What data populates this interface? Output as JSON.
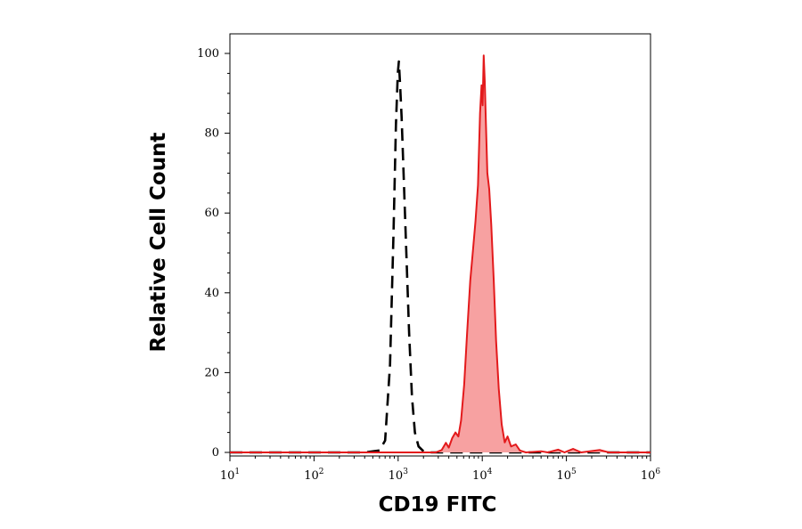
{
  "chart_data": {
    "type": "area",
    "xlabel": "CD19 FITC",
    "ylabel": "Relative Cell Count",
    "x_scale": "log",
    "xlim": [
      10,
      1000000
    ],
    "ylim": [
      0,
      100
    ],
    "x_ticks": [
      {
        "base": "10",
        "exp": "1",
        "value": 10
      },
      {
        "base": "10",
        "exp": "2",
        "value": 100
      },
      {
        "base": "10",
        "exp": "3",
        "value": 1000
      },
      {
        "base": "10",
        "exp": "4",
        "value": 10000
      },
      {
        "base": "10",
        "exp": "5",
        "value": 100000
      },
      {
        "base": "10",
        "exp": "6",
        "value": 1000000
      }
    ],
    "y_ticks": [
      0,
      20,
      40,
      60,
      80,
      100
    ],
    "grid": false,
    "series": [
      {
        "style": "dashed-outline",
        "color": "#000000",
        "points": [
          [
            10,
            0
          ],
          [
            400,
            0
          ],
          [
            600,
            0.5
          ],
          [
            700,
            3
          ],
          [
            800,
            22
          ],
          [
            880,
            55
          ],
          [
            940,
            82
          ],
          [
            990,
            95
          ],
          [
            1020,
            98
          ],
          [
            1050,
            93
          ],
          [
            1100,
            84
          ],
          [
            1170,
            68
          ],
          [
            1260,
            48
          ],
          [
            1350,
            30
          ],
          [
            1460,
            14
          ],
          [
            1580,
            5
          ],
          [
            1750,
            1.5
          ],
          [
            2000,
            0.3
          ],
          [
            2400,
            0
          ],
          [
            1000000,
            0
          ]
        ]
      },
      {
        "style": "filled",
        "color": "#e31a1c",
        "fill": "#f7a1a1",
        "points": [
          [
            10,
            0
          ],
          [
            2800,
            0
          ],
          [
            3300,
            0.6
          ],
          [
            3700,
            2.4
          ],
          [
            4000,
            1.2
          ],
          [
            4400,
            3.6
          ],
          [
            4800,
            5
          ],
          [
            5200,
            4
          ],
          [
            5600,
            8
          ],
          [
            6100,
            17
          ],
          [
            6600,
            30
          ],
          [
            7200,
            43
          ],
          [
            7700,
            50
          ],
          [
            8300,
            58
          ],
          [
            8900,
            67
          ],
          [
            9400,
            85
          ],
          [
            9800,
            92
          ],
          [
            10100,
            87
          ],
          [
            10400,
            99.5
          ],
          [
            10700,
            93
          ],
          [
            11000,
            84
          ],
          [
            11500,
            70
          ],
          [
            12100,
            66
          ],
          [
            12800,
            57
          ],
          [
            13700,
            43
          ],
          [
            14600,
            28
          ],
          [
            15700,
            16
          ],
          [
            17000,
            7
          ],
          [
            18500,
            2.5
          ],
          [
            20000,
            4
          ],
          [
            22000,
            1.5
          ],
          [
            25000,
            2
          ],
          [
            28000,
            0.5
          ],
          [
            33000,
            0
          ],
          [
            50000,
            0.3
          ],
          [
            60000,
            0
          ],
          [
            80000,
            0.7
          ],
          [
            95000,
            0
          ],
          [
            120000,
            0.9
          ],
          [
            150000,
            0
          ],
          [
            250000,
            0.6
          ],
          [
            320000,
            0
          ],
          [
            1000000,
            0
          ]
        ]
      }
    ]
  }
}
